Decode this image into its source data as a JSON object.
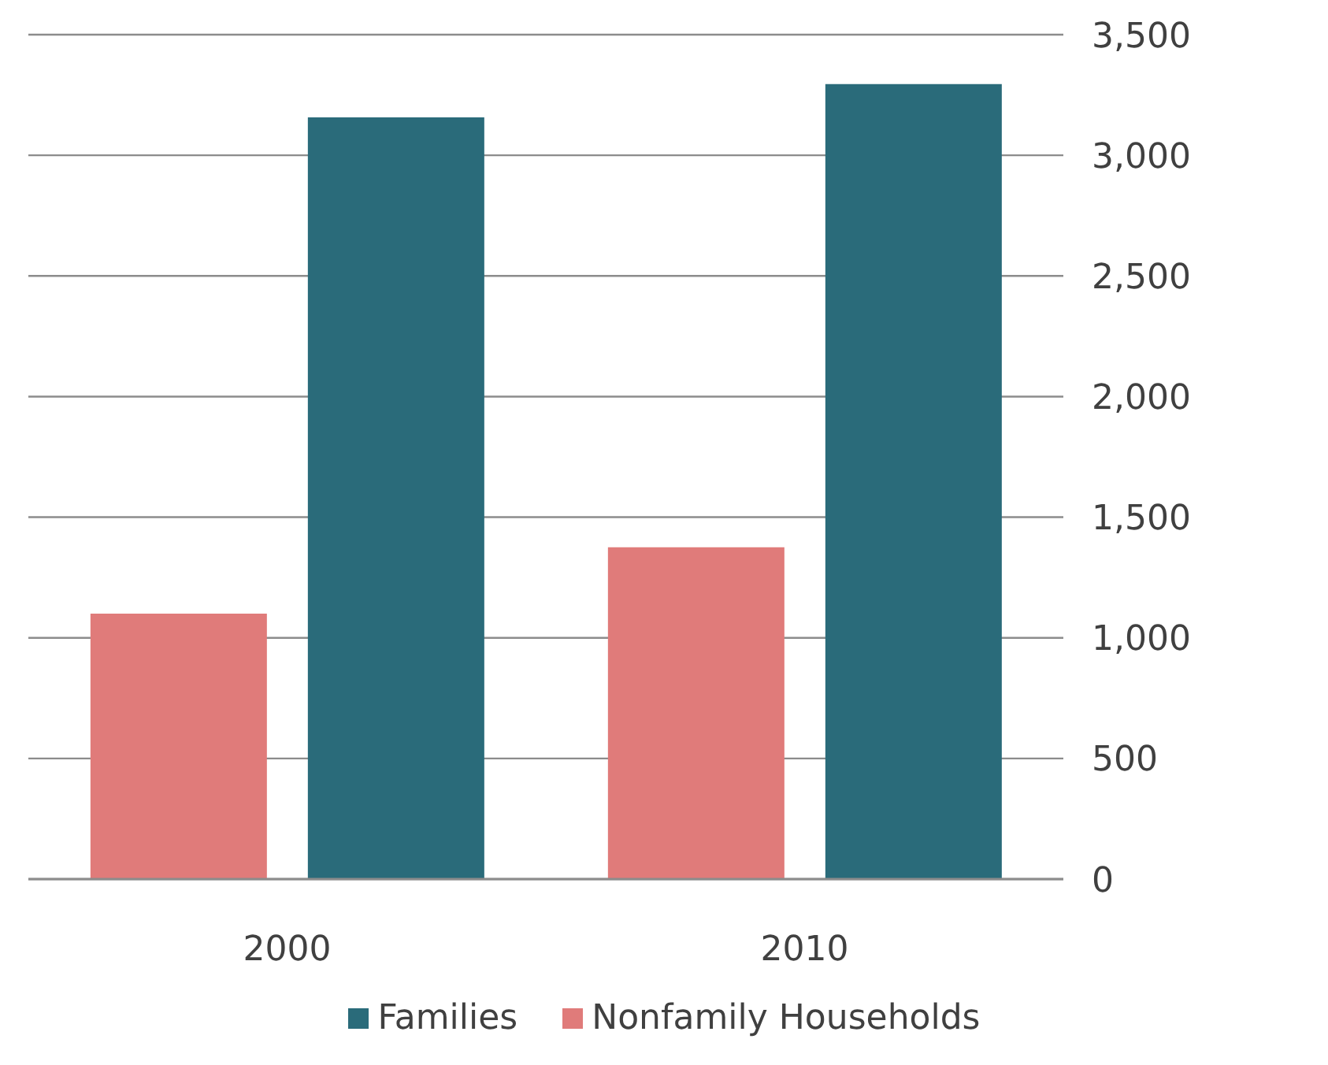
{
  "chart_data": {
    "type": "bar",
    "categories": [
      "2000",
      "2010"
    ],
    "series": [
      {
        "name": "Nonfamily Households",
        "color": "#e07b7a",
        "values": [
          1100,
          1375
        ]
      },
      {
        "name": "Families",
        "color": "#2a6b7a",
        "values": [
          3157,
          3295
        ]
      }
    ],
    "ylim": [
      0,
      3500
    ],
    "yticks": [
      0,
      500,
      {
        "value": 1000,
        "label": "1,000"
      },
      {
        "value": 1500,
        "label": "1,500"
      },
      {
        "value": 2000,
        "label": "2,000"
      },
      {
        "value": 2500,
        "label": "2,500"
      },
      {
        "value": 3000,
        "label": "3,000"
      },
      {
        "value": 3500,
        "label": "3,500"
      }
    ],
    "grid": "y",
    "legend": "bottom"
  }
}
